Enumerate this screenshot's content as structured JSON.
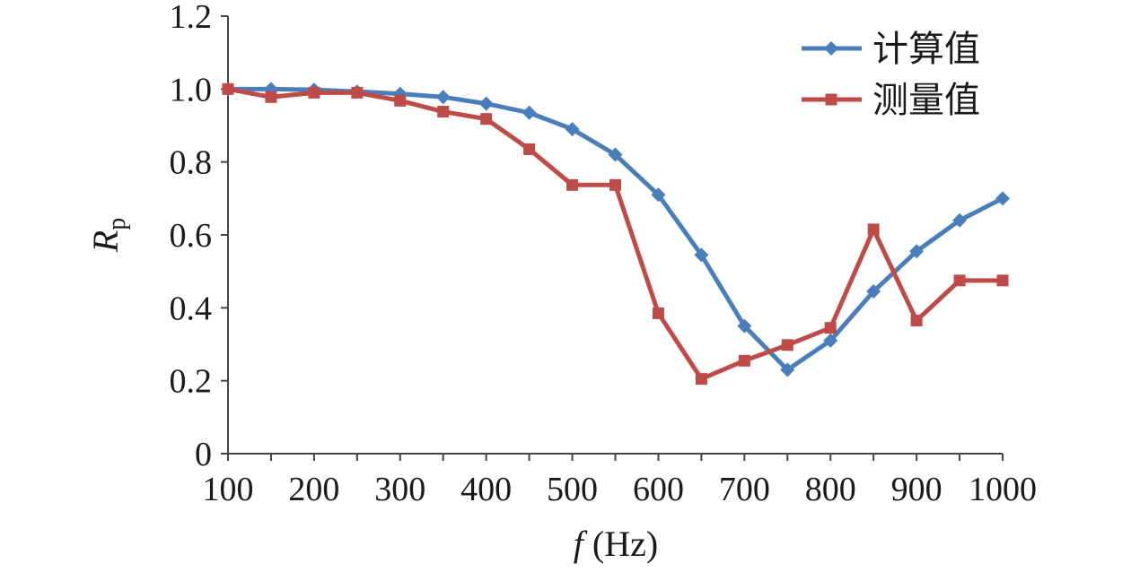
{
  "chart_data": {
    "type": "line",
    "xlabel": "f (Hz)",
    "ylabel": "Rp",
    "xlim": [
      100,
      1000
    ],
    "ylim": [
      0,
      1.2
    ],
    "x_ticks": [
      "100",
      "200",
      "300",
      "400",
      "500",
      "600",
      "700",
      "800",
      "900",
      "1000"
    ],
    "y_ticks": [
      "0",
      "0.2",
      "0.4",
      "0.6",
      "0.8",
      "1.0",
      "1.2"
    ],
    "grid": false,
    "legend_position": "top-right",
    "x": [
      100,
      150,
      200,
      250,
      300,
      350,
      400,
      450,
      500,
      550,
      600,
      650,
      700,
      750,
      800,
      850,
      900,
      950,
      1000
    ],
    "series": [
      {
        "name": "计算值",
        "color": "#4A7EBB",
        "marker": "diamond",
        "values": [
          1.0,
          1.0,
          0.998,
          0.993,
          0.987,
          0.978,
          0.96,
          0.935,
          0.89,
          0.82,
          0.71,
          0.545,
          0.35,
          0.23,
          0.31,
          0.445,
          0.555,
          0.64,
          0.7
        ]
      },
      {
        "name": "测量值",
        "color": "#BE4B48",
        "marker": "square",
        "values": [
          1.0,
          0.978,
          0.99,
          0.99,
          0.968,
          0.938,
          0.918,
          0.835,
          0.737,
          0.737,
          0.385,
          0.205,
          0.255,
          0.298,
          0.345,
          0.615,
          0.365,
          0.475,
          0.475
        ]
      }
    ]
  }
}
